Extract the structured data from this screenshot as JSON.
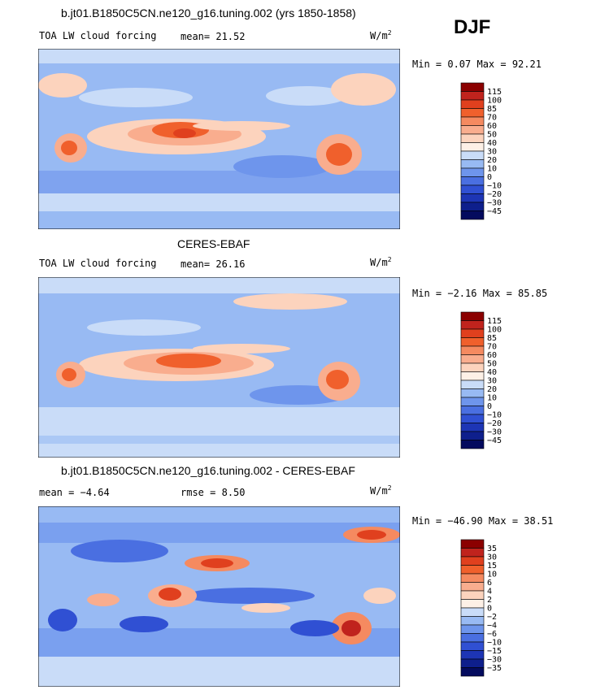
{
  "season": "DJF",
  "panels": [
    {
      "title": "b.jt01.B1850C5CN.ne120_g16.tuning.002 (yrs 1850-1858)",
      "left_label": "TOA LW cloud forcing",
      "mid_label": "mean=",
      "mid_value": "21.52",
      "units_base": "W/m",
      "units_exp": "2",
      "minmax_label": "Min =    0.07 Max =  92.21",
      "colorbar": {
        "levels": [
          "115",
          "100",
          "85",
          "70",
          "60",
          "50",
          "40",
          "30",
          "20",
          "10",
          "0",
          "−10",
          "−20",
          "−30",
          "−45"
        ],
        "colors": [
          "#8b0000",
          "#c0231d",
          "#e0401e",
          "#f0602c",
          "#f58a60",
          "#f9ad8e",
          "#fcd3bd",
          "#fdf0e6",
          "#c9dcf8",
          "#98baf3",
          "#6e95ec",
          "#4a6fe1",
          "#3050d3",
          "#1d35b5",
          "#0e1f8c",
          "#040b5e"
        ]
      },
      "chart_data": {
        "type": "heatmap",
        "variable": "TOA LW cloud forcing",
        "units": "W/m2",
        "mean": 21.52,
        "min": 0.07,
        "max": 92.21
      }
    },
    {
      "title": "CERES-EBAF",
      "left_label": "TOA LW cloud forcing",
      "mid_label": "mean=",
      "mid_value": "26.16",
      "units_base": "W/m",
      "units_exp": "2",
      "minmax_label": "Min = −2.16 Max =  85.85",
      "colorbar": {
        "levels": [
          "115",
          "100",
          "85",
          "70",
          "60",
          "50",
          "40",
          "30",
          "20",
          "10",
          "0",
          "−10",
          "−20",
          "−30",
          "−45"
        ],
        "colors": [
          "#8b0000",
          "#c0231d",
          "#e0401e",
          "#f0602c",
          "#f58a60",
          "#f9ad8e",
          "#fcd3bd",
          "#fdf0e6",
          "#c9dcf8",
          "#98baf3",
          "#6e95ec",
          "#4a6fe1",
          "#3050d3",
          "#1d35b5",
          "#0e1f8c",
          "#040b5e"
        ]
      },
      "chart_data": {
        "type": "heatmap",
        "variable": "TOA LW cloud forcing",
        "units": "W/m2",
        "mean": 26.16,
        "min": -2.16,
        "max": 85.85
      }
    },
    {
      "title": "b.jt01.B1850C5CN.ne120_g16.tuning.002 - CERES-EBAF",
      "left_label": "mean =  −4.64",
      "mid_label": "rmse =",
      "mid_value": "8.50",
      "units_base": "W/m",
      "units_exp": "2",
      "minmax_label": "Min = −46.90 Max =  38.51",
      "colorbar": {
        "levels": [
          "35",
          "30",
          "15",
          "10",
          "6",
          "4",
          "2",
          "0",
          "−2",
          "−4",
          "−6",
          "−10",
          "−15",
          "−30",
          "−35"
        ],
        "colors": [
          "#8b0000",
          "#c0231d",
          "#e0401e",
          "#f0602c",
          "#f58a60",
          "#f9ad8e",
          "#fcd3bd",
          "#fdf0e6",
          "#c9dcf8",
          "#98baf3",
          "#6e95ec",
          "#4a6fe1",
          "#3050d3",
          "#1d35b5",
          "#0e1f8c",
          "#040b5e"
        ]
      },
      "chart_data": {
        "type": "heatmap",
        "variable": "Difference",
        "units": "W/m2",
        "mean": -4.64,
        "rmse": 8.5,
        "min": -46.9,
        "max": 38.51
      }
    }
  ]
}
